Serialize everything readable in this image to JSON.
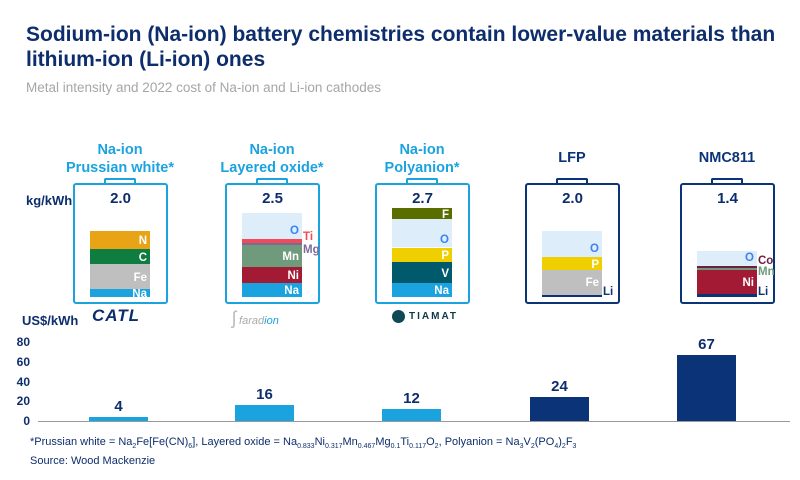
{
  "title": "Sodium-ion (Na-ion) battery chemistries contain lower-value materials than lithium-ion (Li-ion) ones",
  "subtitle": "Metal intensity and 2022 cost of Na-ion and Li-ion cathodes",
  "colors": {
    "na_ion": "#1ba3e0",
    "li_ion": "#0b3478",
    "text": "#0d2d6c"
  },
  "chart_data": [
    {
      "type": "bar",
      "stacked": true,
      "ylabel": "kg/kWh",
      "categories": [
        "Na-ion Prussian white*",
        "Na-ion Layered oxide*",
        "Na-ion Polyanion*",
        "LFP",
        "NMC811"
      ],
      "headers": [
        {
          "line1": "Na-ion",
          "line2": "Prussian white*",
          "group": "na_ion"
        },
        {
          "line1": "Na-ion",
          "line2": "Layered oxide*",
          "group": "na_ion"
        },
        {
          "line1": "Na-ion",
          "line2": "Polyanion*",
          "group": "na_ion"
        },
        {
          "line1": "LFP",
          "line2": "",
          "group": "li_ion"
        },
        {
          "line1": "NMC811",
          "line2": "",
          "group": "li_ion"
        }
      ],
      "totals": [
        "2.0",
        "2.5",
        "2.7",
        "2.0",
        "1.4"
      ],
      "stacks": [
        [
          {
            "name": "Na",
            "value": 0.25,
            "color": "#1ba3e0",
            "label_color": "#ffffff",
            "outside": false
          },
          {
            "name": "Fe",
            "value": 0.74,
            "color": "#bfbfbf",
            "label_color": "#ffffff",
            "outside": false
          },
          {
            "name": "C",
            "value": 0.46,
            "color": "#0e7d3f",
            "label_color": "#ffffff",
            "outside": false
          },
          {
            "name": "N",
            "value": 0.55,
            "color": "#e8a317",
            "label_color": "#ffffff",
            "outside": false
          }
        ],
        [
          {
            "name": "Na",
            "value": 0.43,
            "color": "#1ba3e0",
            "label_color": "#ffffff",
            "outside": false
          },
          {
            "name": "Ni",
            "value": 0.47,
            "color": "#a31a35",
            "label_color": "#ffffff",
            "outside": false
          },
          {
            "name": "Mn",
            "value": 0.68,
            "color": "#6f9a7b",
            "label_color": "#ffffff",
            "outside": false
          },
          {
            "name": "Mg",
            "value": 0.05,
            "color": "#7a6a9a",
            "label_color": "#7a6a9a",
            "outside": true
          },
          {
            "name": "Ti",
            "value": 0.12,
            "color": "#f24a57",
            "label_color": "#f24a57",
            "outside": true
          },
          {
            "name": "O",
            "value": 0.79,
            "color": "#ddedf9",
            "label_color": "#3b82f6",
            "outside": false
          }
        ],
        [
          {
            "name": "Na",
            "value": 0.41,
            "color": "#1ba3e0",
            "label_color": "#ffffff",
            "outside": false
          },
          {
            "name": "V",
            "value": 0.66,
            "color": "#005a6b",
            "label_color": "#ffffff",
            "outside": false
          },
          {
            "name": "P",
            "value": 0.43,
            "color": "#f0cf00",
            "label_color": "#ffffff",
            "outside": false
          },
          {
            "name": "O",
            "value": 0.85,
            "color": "#ddedf9",
            "label_color": "#3b82f6",
            "outside": false
          },
          {
            "name": "F",
            "value": 0.36,
            "color": "#5a6e00",
            "label_color": "#ffffff",
            "outside": false
          }
        ],
        [
          {
            "name": "Li",
            "value": 0.07,
            "color": "#0b3478",
            "label_color": "#0b3478",
            "outside": true
          },
          {
            "name": "Fe",
            "value": 0.74,
            "color": "#bfbfbf",
            "label_color": "#ffffff",
            "outside": false
          },
          {
            "name": "P",
            "value": 0.39,
            "color": "#f0cf00",
            "label_color": "#ffffff",
            "outside": false
          },
          {
            "name": "O",
            "value": 0.8,
            "color": "#ddedf9",
            "label_color": "#3b82f6",
            "outside": false
          }
        ],
        [
          {
            "name": "Li",
            "value": 0.1,
            "color": "#0b3478",
            "label_color": "#0b3478",
            "outside": true
          },
          {
            "name": "Ni",
            "value": 0.72,
            "color": "#a31a35",
            "label_color": "#ffffff",
            "outside": false
          },
          {
            "name": "Mn",
            "value": 0.07,
            "color": "#6f9a7b",
            "label_color": "#6f9a7b",
            "outside": true
          },
          {
            "name": "Co",
            "value": 0.05,
            "color": "#6e1e40",
            "label_color": "#6e1e40",
            "outside": true
          },
          {
            "name": "O",
            "value": 0.46,
            "color": "#ddedf9",
            "label_color": "#3b82f6",
            "outside": false
          }
        ]
      ]
    },
    {
      "type": "bar",
      "ylabel": "US$/kWh",
      "categories": [
        "Na-ion Prussian white*",
        "Na-ion Layered oxide*",
        "Na-ion Polyanion*",
        "LFP",
        "NMC811"
      ],
      "values": [
        4,
        16,
        12,
        24,
        67
      ],
      "bar_colors": [
        "#1ba3e0",
        "#1ba3e0",
        "#1ba3e0",
        "#0b3478",
        "#0b3478"
      ],
      "ylim": [
        0,
        80
      ],
      "yticks": [
        "0",
        "20",
        "40",
        "60",
        "80"
      ],
      "grid": false
    }
  ],
  "logos": [
    {
      "name": "CATL",
      "text": "CATL"
    },
    {
      "name": "faradion",
      "text1": "farad",
      "text2": "ion"
    },
    {
      "name": "TIAMAT",
      "text": "TIAMAT"
    }
  ],
  "footnote": [
    {
      "t": "*Prussian white = Na"
    },
    {
      "s": "2"
    },
    {
      "t": "Fe[Fe(CN)"
    },
    {
      "s": "6"
    },
    {
      "t": "], Layered oxide = Na"
    },
    {
      "s": "0.833"
    },
    {
      "t": "Ni"
    },
    {
      "s": "0.317"
    },
    {
      "t": "Mn"
    },
    {
      "s": "0.467"
    },
    {
      "t": "Mg"
    },
    {
      "s": "0.1"
    },
    {
      "t": "Ti"
    },
    {
      "s": "0.117"
    },
    {
      "t": "O"
    },
    {
      "s": "2"
    },
    {
      "t": ", Polyanion = Na"
    },
    {
      "s": "3"
    },
    {
      "t": "V"
    },
    {
      "s": "2"
    },
    {
      "t": "(PO"
    },
    {
      "s": "4"
    },
    {
      "t": ")"
    },
    {
      "s": "2"
    },
    {
      "t": "F"
    },
    {
      "s": "3"
    }
  ],
  "source": "Source: Wood Mackenzie"
}
